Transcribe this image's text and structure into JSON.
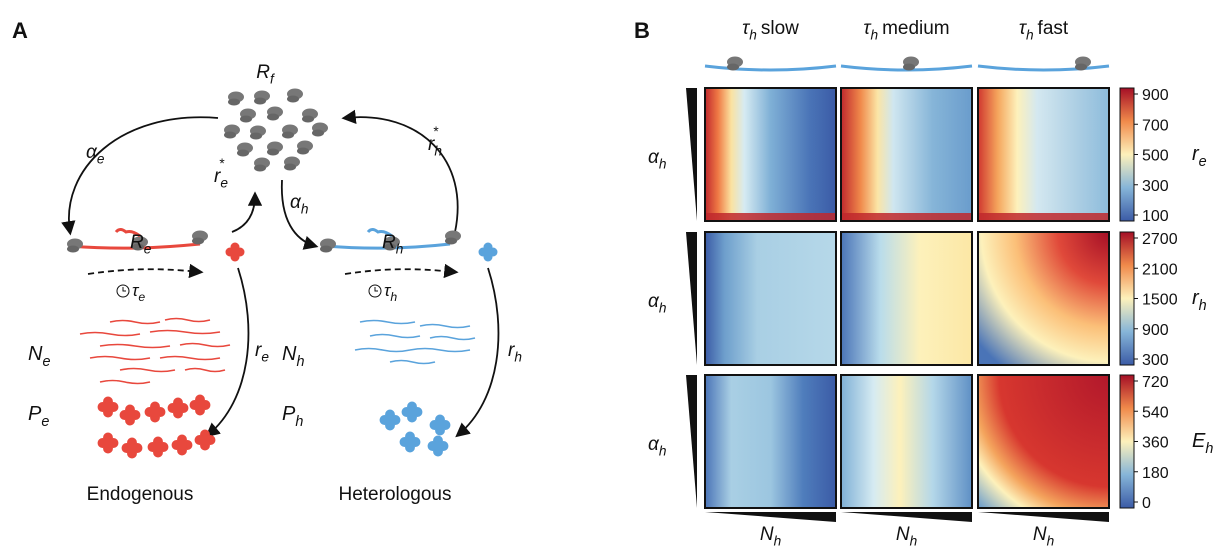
{
  "panel_a": {
    "label": "A",
    "labels": {
      "R_f": {
        "base": "R",
        "sub": "f"
      },
      "alpha_e": {
        "base": "α",
        "sub": "e"
      },
      "r_h_star": {
        "base": "r",
        "sub": "h",
        "sup": "*"
      },
      "R_e": {
        "base": "R",
        "sub": "e"
      },
      "r_e_star": {
        "base": "r",
        "sub": "e",
        "sup": "*"
      },
      "alpha_h": {
        "base": "α",
        "sub": "h"
      },
      "R_h": {
        "base": "R",
        "sub": "h"
      },
      "tau_e": {
        "base": "τ",
        "sub": "e"
      },
      "tau_h": {
        "base": "τ",
        "sub": "h"
      },
      "N_e": {
        "base": "N",
        "sub": "e"
      },
      "N_h": {
        "base": "N",
        "sub": "h"
      },
      "r_e": {
        "base": "r",
        "sub": "e"
      },
      "r_h": {
        "base": "r",
        "sub": "h"
      },
      "P_e": {
        "base": "P",
        "sub": "e"
      },
      "P_h": {
        "base": "P",
        "sub": "h"
      }
    },
    "groups": [
      "Endogenous",
      "Heterologous"
    ]
  },
  "panel_b": {
    "label": "B",
    "columns": [
      {
        "base": "τ",
        "sub": "h",
        "text": "slow"
      },
      {
        "base": "τ",
        "sub": "h",
        "text": "medium"
      },
      {
        "base": "τ",
        "sub": "h",
        "text": "fast"
      }
    ],
    "rows": [
      {
        "y_label": {
          "base": "α",
          "sub": "h"
        },
        "colorbar_label": {
          "base": "r",
          "sub": "e"
        },
        "colorbar_ticks": [
          900,
          700,
          500,
          300,
          100
        ]
      },
      {
        "y_label": {
          "base": "α",
          "sub": "h"
        },
        "colorbar_label": {
          "base": "r",
          "sub": "h"
        },
        "colorbar_ticks": [
          2700,
          2100,
          1500,
          900,
          300
        ]
      },
      {
        "y_label": {
          "base": "α",
          "sub": "h"
        },
        "colorbar_label": {
          "base": "E",
          "sub": "h"
        },
        "colorbar_ticks": [
          720,
          540,
          360,
          180,
          0
        ]
      }
    ],
    "x_labels": [
      {
        "base": "N",
        "sub": "h"
      },
      {
        "base": "N",
        "sub": "h"
      },
      {
        "base": "N",
        "sub": "h"
      }
    ]
  }
}
